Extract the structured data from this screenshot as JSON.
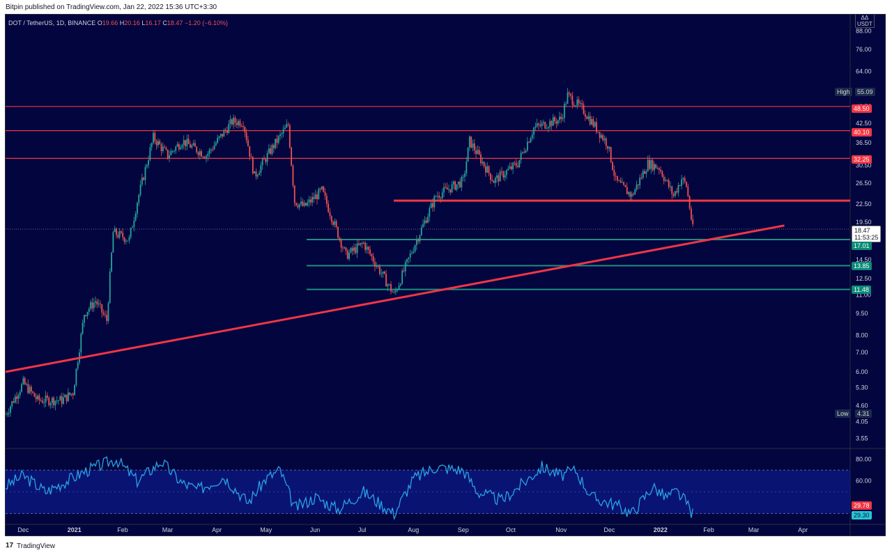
{
  "header": {
    "published_text": "Bitpin published on TradingView.com, Jan 22, 2022 15:36 UTC+3:30"
  },
  "legend": {
    "symbol": "DOT / TetherUS, 1D, BINANCE",
    "open_label": "O",
    "open": "19.66",
    "high_label": "H",
    "high": "20.16",
    "low_label": "L",
    "low": "16.17",
    "close_label": "C",
    "close": "18.47",
    "change": "−1.20 (−6.10%)"
  },
  "price_axis": {
    "currency_top": "ΔΔ",
    "currency": "USDT",
    "ticks": [
      "88.00",
      "76.00",
      "64.00",
      "48.50",
      "42.50",
      "36.50",
      "30.50",
      "26.50",
      "22.50",
      "19.50",
      "14.50",
      "12.50",
      "11.00",
      "9.50",
      "8.00",
      "7.00",
      "6.00",
      "5.30",
      "4.60",
      "4.05",
      "3.55"
    ],
    "high_tag_label": "High",
    "high_tag_value": "55.09",
    "low_tag_label": "Low",
    "low_tag_value": "4.31",
    "levels_red": [
      "48.50",
      "40.10",
      "32.25"
    ],
    "levels_green": [
      "17.01",
      "13.85",
      "11.48"
    ],
    "current_price": "18.47",
    "countdown": "11:53:25"
  },
  "rsi_axis": {
    "ticks": [
      "80.00",
      "60.00"
    ],
    "value_red": "29.78",
    "value_blue": "29.30"
  },
  "time_axis": {
    "labels": [
      "Dec",
      "2021",
      "Feb",
      "Mar",
      "Apr",
      "May",
      "Jun",
      "Jul",
      "Aug",
      "Sep",
      "Oct",
      "Nov",
      "Dec",
      "2022",
      "Feb",
      "Mar",
      "Apr"
    ]
  },
  "footer": {
    "logo": "17",
    "brand": "TradingView"
  },
  "colors": {
    "background": "#03053f",
    "bull": "#26a69a",
    "bear": "#ef5350",
    "trendline": "#f23645",
    "resistance": "#f23645",
    "support": "#1e8f80",
    "rsi_line": "#2aa3e6",
    "rsi_band": "#0b1680"
  },
  "chart_data": {
    "type": "candlestick",
    "title": "DOT / TetherUS, 1D, BINANCE",
    "y_scale": "log",
    "y_range": [
      3.3,
      100
    ],
    "x_range": [
      "2020-11-20",
      "2022-04-30"
    ],
    "price_path": [
      [
        "2020-11-20",
        4.3
      ],
      [
        "2020-12-01",
        5.5
      ],
      [
        "2020-12-10",
        4.8
      ],
      [
        "2020-12-25",
        4.8
      ],
      [
        "2021-01-01",
        5.1
      ],
      [
        "2021-01-08",
        9.5
      ],
      [
        "2021-01-15",
        10.5
      ],
      [
        "2021-01-22",
        9.0
      ],
      [
        "2021-01-26",
        18.0
      ],
      [
        "2021-02-05",
        17.0
      ],
      [
        "2021-02-10",
        23.0
      ],
      [
        "2021-02-20",
        38.0
      ],
      [
        "2021-03-01",
        33.0
      ],
      [
        "2021-03-10",
        37.0
      ],
      [
        "2021-03-25",
        33.0
      ],
      [
        "2021-04-10",
        43.0
      ],
      [
        "2021-04-17",
        43.0
      ],
      [
        "2021-04-24",
        28.0
      ],
      [
        "2021-05-05",
        35.0
      ],
      [
        "2021-05-15",
        42.0
      ],
      [
        "2021-05-19",
        23.0
      ],
      [
        "2021-05-25",
        22.0
      ],
      [
        "2021-06-05",
        25.0
      ],
      [
        "2021-06-20",
        15.0
      ],
      [
        "2021-07-01",
        16.5
      ],
      [
        "2021-07-20",
        11.0
      ],
      [
        "2021-08-01",
        16.0
      ],
      [
        "2021-08-15",
        24.0
      ],
      [
        "2021-09-01",
        27.0
      ],
      [
        "2021-09-05",
        37.0
      ],
      [
        "2021-09-20",
        27.0
      ],
      [
        "2021-10-05",
        31.0
      ],
      [
        "2021-10-15",
        41.0
      ],
      [
        "2021-11-01",
        44.0
      ],
      [
        "2021-11-05",
        53.0
      ],
      [
        "2021-11-15",
        47.0
      ],
      [
        "2021-11-30",
        36.0
      ],
      [
        "2021-12-05",
        27.0
      ],
      [
        "2021-12-15",
        24.0
      ],
      [
        "2021-12-25",
        31.0
      ],
      [
        "2022-01-01",
        30.0
      ],
      [
        "2022-01-10",
        24.0
      ],
      [
        "2022-01-15",
        27.5
      ],
      [
        "2022-01-18",
        26.0
      ],
      [
        "2022-01-22",
        18.47
      ]
    ],
    "horizontal_levels": [
      {
        "value": 48.5,
        "color": "red"
      },
      {
        "value": 40.1,
        "color": "red"
      },
      {
        "value": 32.25,
        "color": "red"
      },
      {
        "value": 23.1,
        "color": "red"
      },
      {
        "value": 17.01,
        "color": "green"
      },
      {
        "value": 13.85,
        "color": "green"
      },
      {
        "value": 11.48,
        "color": "green"
      }
    ],
    "trendline": [
      [
        "2020-11-20",
        6.0
      ],
      [
        "2022-03-20",
        19.0
      ]
    ],
    "rsi": {
      "band": [
        30,
        70
      ],
      "path": [
        [
          "2020-11-20",
          55
        ],
        [
          "2020-12-01",
          65
        ],
        [
          "2020-12-15",
          50
        ],
        [
          "2021-01-10",
          70
        ],
        [
          "2021-01-28",
          80
        ],
        [
          "2021-02-10",
          60
        ],
        [
          "2021-02-25",
          78
        ],
        [
          "2021-03-10",
          58
        ],
        [
          "2021-03-20",
          52
        ],
        [
          "2021-04-05",
          64
        ],
        [
          "2021-04-20",
          40
        ],
        [
          "2021-05-01",
          62
        ],
        [
          "2021-05-10",
          70
        ],
        [
          "2021-05-19",
          35
        ],
        [
          "2021-06-01",
          45
        ],
        [
          "2021-06-15",
          34
        ],
        [
          "2021-07-01",
          50
        ],
        [
          "2021-07-20",
          30
        ],
        [
          "2021-08-01",
          62
        ],
        [
          "2021-08-15",
          73
        ],
        [
          "2021-09-01",
          70
        ],
        [
          "2021-09-10",
          50
        ],
        [
          "2021-09-25",
          42
        ],
        [
          "2021-10-10",
          60
        ],
        [
          "2021-10-20",
          73
        ],
        [
          "2021-11-01",
          65
        ],
        [
          "2021-11-10",
          70
        ],
        [
          "2021-11-20",
          45
        ],
        [
          "2021-12-05",
          38
        ],
        [
          "2021-12-15",
          30
        ],
        [
          "2021-12-28",
          55
        ],
        [
          "2022-01-05",
          45
        ],
        [
          "2022-01-12",
          50
        ],
        [
          "2022-01-18",
          40
        ],
        [
          "2022-01-22",
          29.3
        ]
      ]
    }
  }
}
